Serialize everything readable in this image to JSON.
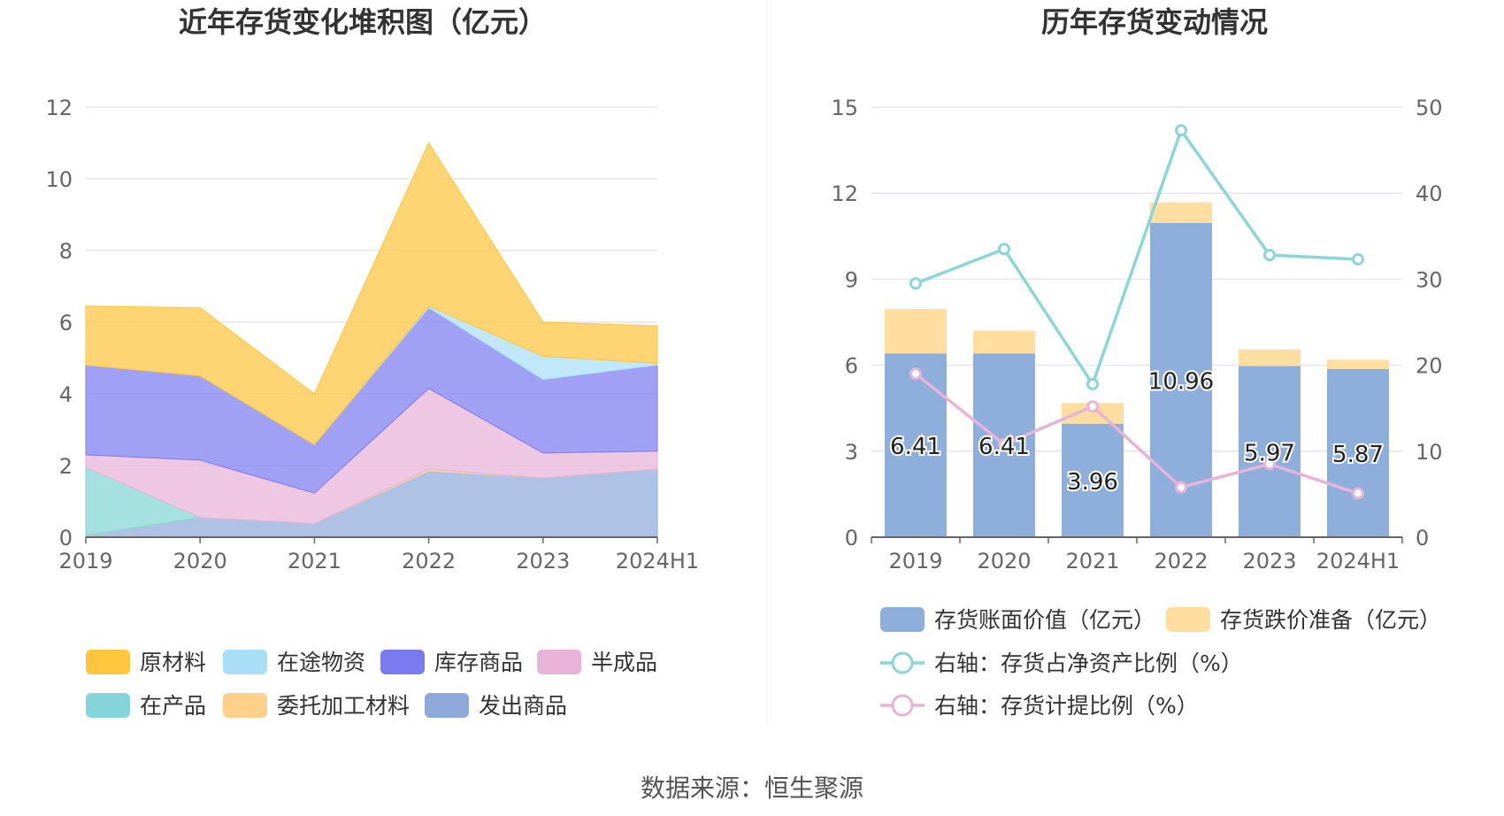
{
  "source": "数据来源：恒生聚源",
  "chart_data": [
    {
      "type": "area",
      "stacked": true,
      "title": "近年存货变化堆积图（亿元）",
      "categories": [
        "2019",
        "2020",
        "2021",
        "2022",
        "2023",
        "2024H1"
      ],
      "ylim": [
        0,
        12
      ],
      "yticks": [
        0,
        2,
        4,
        6,
        8,
        10,
        12
      ],
      "grid": true,
      "legend_position": "bottom",
      "series": [
        {
          "name": "发出商品",
          "color": "#8eaadb",
          "values": [
            0.05,
            0.55,
            0.38,
            1.85,
            1.65,
            1.9
          ]
        },
        {
          "name": "委托加工材料",
          "color": "#ffd08a",
          "values": [
            0.0,
            0.0,
            0.0,
            0.05,
            0.0,
            0.0
          ]
        },
        {
          "name": "在产品",
          "color": "#84d5d7",
          "values": [
            1.9,
            0.0,
            0.0,
            0.0,
            0.0,
            0.0
          ]
        },
        {
          "name": "半成品",
          "color": "#e8b3d8",
          "values": [
            0.35,
            1.6,
            0.85,
            2.25,
            0.7,
            0.5
          ]
        },
        {
          "name": "库存商品",
          "color": "#7b7bf0",
          "values": [
            2.5,
            2.35,
            1.35,
            2.25,
            2.05,
            2.4
          ]
        },
        {
          "name": "在途物资",
          "color": "#a9dff6",
          "values": [
            0.0,
            0.0,
            0.0,
            0.05,
            0.65,
            0.05
          ]
        },
        {
          "name": "原材料",
          "color": "#ffc53d",
          "values": [
            1.65,
            1.9,
            1.42,
            4.55,
            0.95,
            1.05
          ]
        }
      ],
      "legend_order": [
        "原材料",
        "在途物资",
        "库存商品",
        "半成品",
        "在产品",
        "委托加工材料",
        "发出商品"
      ]
    },
    {
      "type": "bar",
      "stacked": true,
      "title": "历年存货变动情况",
      "categories": [
        "2019",
        "2020",
        "2021",
        "2022",
        "2023",
        "2024H1"
      ],
      "ylim": [
        0,
        15
      ],
      "yticks": [
        0,
        3,
        6,
        9,
        12,
        15
      ],
      "y2lim": [
        0,
        50
      ],
      "y2ticks": [
        0,
        10,
        20,
        30,
        40,
        50
      ],
      "grid": true,
      "legend_position": "bottom",
      "series": [
        {
          "name": "存货账面价值（亿元）",
          "kind": "bar",
          "color": "#8eaedb",
          "values": [
            6.41,
            6.41,
            3.96,
            10.96,
            5.97,
            5.87
          ],
          "labels": [
            "6.41",
            "6.41",
            "3.96",
            "10.96",
            "5.97",
            "5.87"
          ]
        },
        {
          "name": "存货跌价准备（亿元）",
          "kind": "bar",
          "color": "#ffdea0",
          "values": [
            1.55,
            0.8,
            0.72,
            0.72,
            0.58,
            0.32
          ]
        },
        {
          "name": "右轴：存货占净资产比例（%）",
          "kind": "line",
          "axis": "right",
          "color": "#8ad6d8",
          "values": [
            29.5,
            33.5,
            17.8,
            47.3,
            32.8,
            32.3
          ]
        },
        {
          "name": "右轴：存货计提比例（%）",
          "kind": "line",
          "axis": "right",
          "color": "#e8b3d8",
          "values": [
            19.0,
            10.8,
            15.2,
            5.8,
            8.5,
            5.1
          ]
        }
      ]
    }
  ]
}
